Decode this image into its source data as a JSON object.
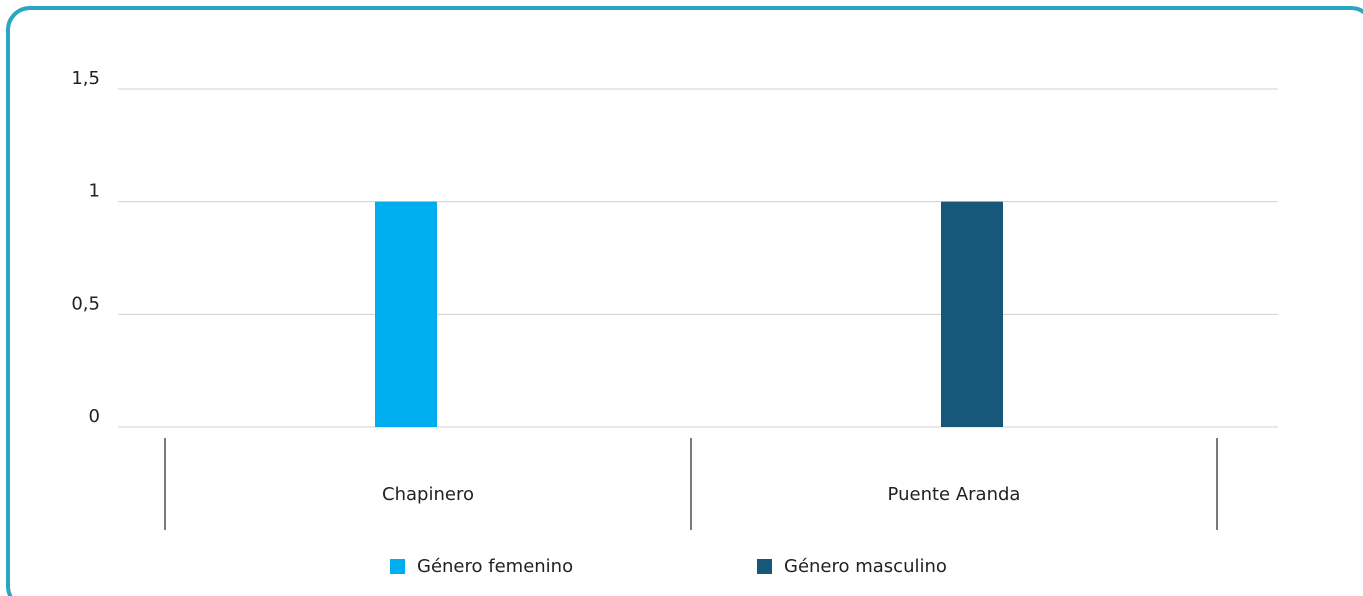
{
  "chart_data": {
    "type": "bar",
    "categories": [
      "Chapinero",
      "Puente Aranda"
    ],
    "series": [
      {
        "name": "Género femenino",
        "color": "#00aeef",
        "values": [
          1,
          0
        ]
      },
      {
        "name": "Género masculino",
        "color": "#17587a",
        "values": [
          0,
          1
        ]
      }
    ],
    "ylim": [
      0,
      1.5
    ],
    "yticks": [
      0,
      {
        "value": 0.5,
        "label": "0,5"
      },
      1,
      {
        "value": 1.5,
        "label": "1,5"
      }
    ],
    "grid": true,
    "legend": "bottom"
  }
}
